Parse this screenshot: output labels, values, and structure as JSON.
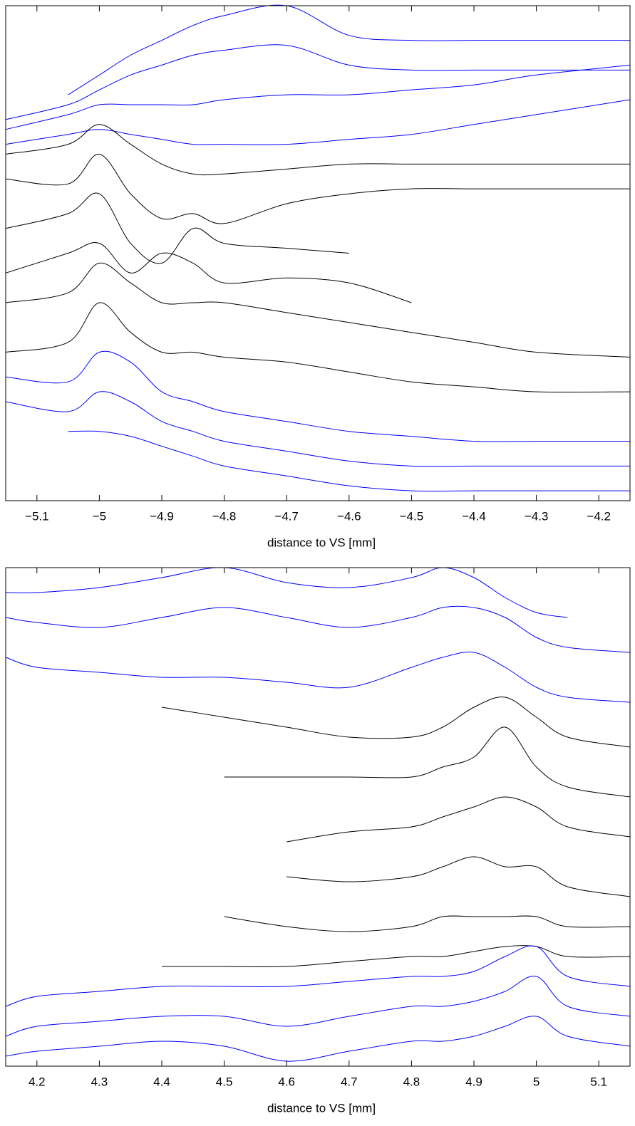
{
  "chart_data": [
    {
      "type": "line",
      "xlabel": "distance to VS [mm]",
      "xlim": [
        -5.15,
        -4.15
      ],
      "ylim": [
        0,
        100
      ],
      "xticks": [
        {
          "value": -5.1,
          "label": "−5.1"
        },
        {
          "value": -5,
          "label": "−5"
        },
        {
          "value": -4.9,
          "label": "−4.9"
        },
        {
          "value": -4.8,
          "label": "−4.8"
        },
        {
          "value": -4.7,
          "label": "−4.7"
        },
        {
          "value": -4.6,
          "label": "−4.6"
        },
        {
          "value": -4.5,
          "label": "−4.5"
        },
        {
          "value": -4.4,
          "label": "−4.4"
        },
        {
          "value": -4.3,
          "label": "−4.3"
        },
        {
          "value": -4.2,
          "label": "−4.2"
        }
      ],
      "x": [
        -5.15,
        -5.05,
        -5.0,
        -4.95,
        -4.9,
        -4.85,
        -4.8,
        -4.7,
        -4.6,
        -4.5,
        -4.4,
        -4.3,
        -4.15
      ],
      "series": [
        {
          "color": "#0000ff",
          "values": [
            null,
            82,
            86,
            90,
            93,
            96,
            98,
            100,
            94,
            93,
            93,
            93,
            93
          ]
        },
        {
          "color": "#0000ff",
          "values": [
            77,
            80,
            83,
            86,
            88,
            90,
            91,
            92,
            88,
            87,
            87,
            87,
            87
          ]
        },
        {
          "color": "#0000ff",
          "values": [
            75,
            78,
            80,
            80,
            80,
            80,
            81,
            82,
            82,
            83,
            84,
            86,
            88
          ]
        },
        {
          "color": "#0000ff",
          "values": [
            72,
            74,
            75,
            74,
            73,
            72,
            72,
            72,
            73,
            74,
            76,
            78,
            81
          ]
        },
        {
          "color": "#000000",
          "values": [
            70,
            72,
            76,
            72,
            68,
            66,
            66,
            67,
            68,
            68,
            68,
            68,
            68
          ]
        },
        {
          "color": "#000000",
          "values": [
            65,
            64,
            70,
            62,
            57,
            58,
            56,
            60,
            62,
            63,
            63,
            63,
            63
          ]
        },
        {
          "color": "#000000",
          "values": [
            55,
            58,
            62,
            52,
            48,
            55,
            52,
            51,
            50,
            null,
            null,
            null,
            null
          ]
        },
        {
          "color": "#000000",
          "values": [
            46,
            50,
            52,
            46,
            50,
            48,
            44,
            45,
            44,
            40,
            null,
            null,
            null
          ]
        },
        {
          "color": "#000000",
          "values": [
            40,
            42,
            48,
            44,
            40,
            40,
            40,
            38,
            36,
            34,
            32,
            30,
            29
          ]
        },
        {
          "color": "#000000",
          "values": [
            30,
            32,
            40,
            34,
            30,
            30,
            29,
            28,
            26,
            24,
            23,
            22,
            22
          ]
        },
        {
          "color": "#0000ff",
          "values": [
            25,
            24,
            30,
            28,
            22,
            20,
            18,
            16,
            14,
            13,
            12,
            12,
            12
          ]
        },
        {
          "color": "#0000ff",
          "values": [
            20,
            18,
            22,
            20,
            16,
            14,
            12,
            10,
            8,
            7,
            7,
            7,
            7
          ]
        },
        {
          "color": "#0000ff",
          "values": [
            null,
            14,
            14,
            13,
            11,
            9,
            7,
            5,
            3,
            2,
            2,
            2,
            2
          ]
        }
      ]
    },
    {
      "type": "line",
      "xlabel": "distance to VS [mm]",
      "xlim": [
        4.15,
        5.15
      ],
      "ylim": [
        0,
        100
      ],
      "xticks": [
        4.2,
        4.3,
        4.4,
        4.5,
        4.6,
        4.7,
        4.8,
        4.9,
        5,
        5.1
      ],
      "x": [
        4.15,
        4.2,
        4.3,
        4.4,
        4.5,
        4.6,
        4.7,
        4.8,
        4.85,
        4.9,
        4.95,
        5.0,
        5.05,
        5.15
      ],
      "series": [
        {
          "color": "#0000ff",
          "values": [
            95,
            95,
            96,
            98,
            100,
            97,
            96,
            98,
            100,
            98,
            94,
            91,
            90,
            null
          ]
        },
        {
          "color": "#0000ff",
          "values": [
            90,
            89,
            88,
            90,
            92,
            90,
            88,
            90,
            92,
            92,
            90,
            86,
            84,
            83
          ]
        },
        {
          "color": "#0000ff",
          "values": [
            82,
            80,
            79,
            78,
            78,
            77,
            76,
            80,
            82,
            83,
            80,
            76,
            74,
            73
          ]
        },
        {
          "color": "#000000",
          "values": [
            null,
            null,
            null,
            72,
            70,
            68,
            66,
            66,
            68,
            72,
            74,
            70,
            66,
            64
          ]
        },
        {
          "color": "#000000",
          "values": [
            null,
            null,
            null,
            null,
            58,
            58,
            58,
            58,
            60,
            62,
            68,
            60,
            56,
            54
          ]
        },
        {
          "color": "#000000",
          "values": [
            null,
            null,
            null,
            null,
            null,
            45,
            47,
            48,
            50,
            52,
            54,
            52,
            48,
            46
          ]
        },
        {
          "color": "#000000",
          "values": [
            null,
            null,
            null,
            null,
            null,
            38,
            37,
            38,
            40,
            42,
            40,
            40,
            36,
            34
          ]
        },
        {
          "color": "#000000",
          "values": [
            null,
            null,
            null,
            null,
            30,
            28,
            27,
            28,
            30,
            30,
            30,
            30,
            28,
            28
          ]
        },
        {
          "color": "#000000",
          "values": [
            null,
            null,
            null,
            20,
            20,
            20,
            21,
            22,
            22,
            23,
            24,
            24,
            22,
            22
          ]
        },
        {
          "color": "#0000ff",
          "values": [
            12,
            14,
            15,
            16,
            16,
            16,
            17,
            18,
            18,
            19,
            22,
            24,
            18,
            16
          ]
        },
        {
          "color": "#0000ff",
          "values": [
            6,
            8,
            9,
            10,
            10,
            8,
            10,
            12,
            12,
            13,
            15,
            18,
            12,
            10
          ]
        },
        {
          "color": "#0000ff",
          "values": [
            2,
            3,
            4,
            5,
            4,
            1,
            3,
            5,
            5,
            6,
            8,
            10,
            6,
            4
          ]
        }
      ]
    }
  ]
}
